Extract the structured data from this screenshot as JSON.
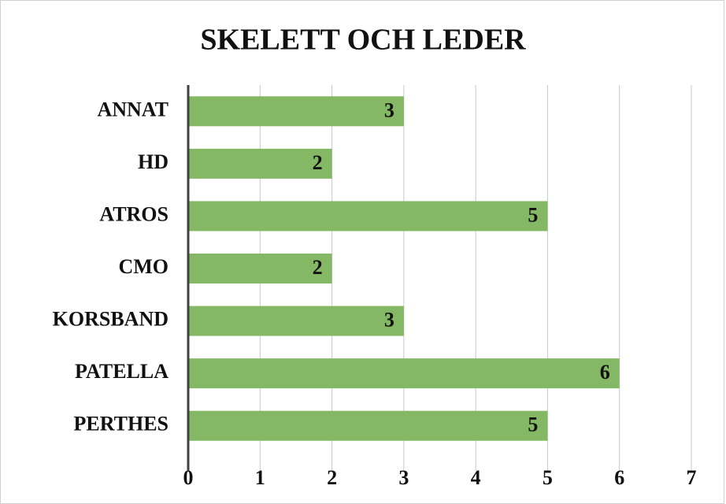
{
  "chart_data": {
    "type": "bar",
    "orientation": "horizontal",
    "title": "SKELETT OCH LEDER",
    "categories": [
      "ANNAT",
      "HD",
      "ATROS",
      "CMO",
      "KORSBAND",
      "PATELLA",
      "PERTHES"
    ],
    "values": [
      3,
      2,
      5,
      2,
      3,
      6,
      5
    ],
    "color": "#84b865",
    "xlim": [
      0,
      7
    ],
    "xticks": [
      0,
      1,
      2,
      3,
      4,
      5,
      6,
      7
    ],
    "grid": true
  }
}
